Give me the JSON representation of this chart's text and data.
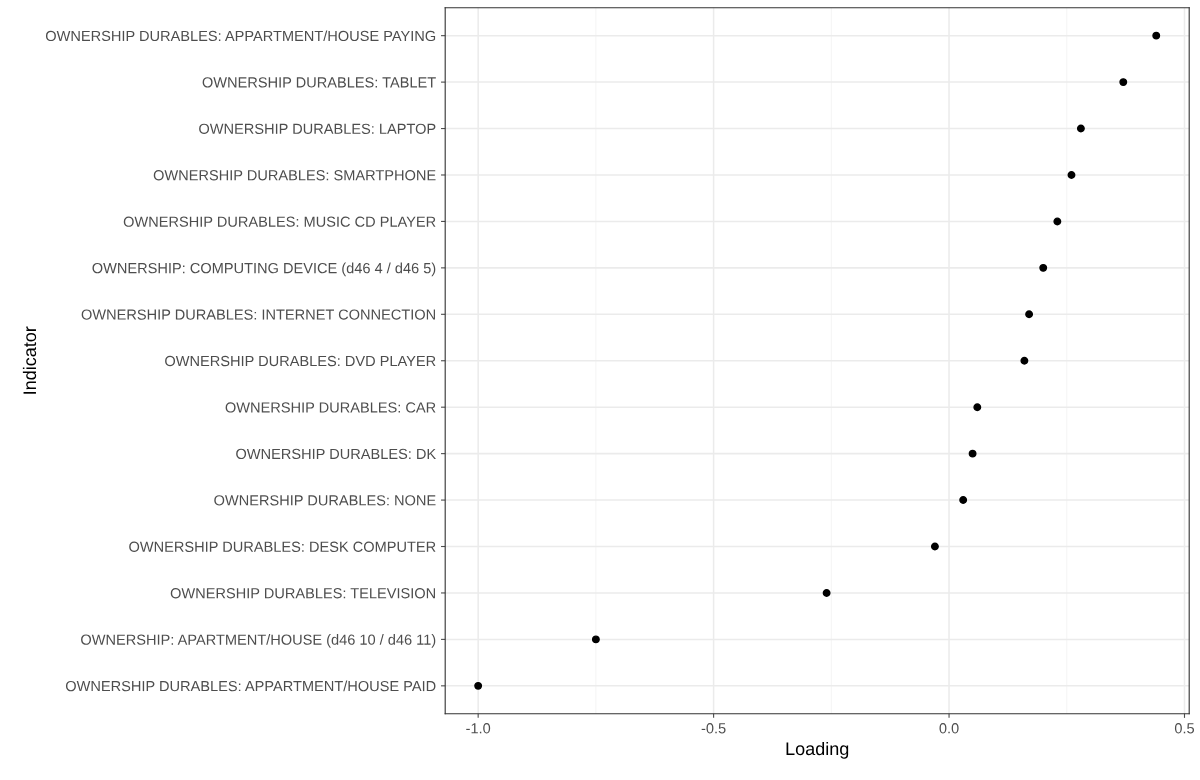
{
  "chart_data": {
    "type": "scatter",
    "orientation": "horizontal",
    "xlabel": "Loading",
    "ylabel": "Indicator",
    "categories": [
      "OWNERSHIP DURABLES: APPARTMENT/HOUSE PAYING",
      "OWNERSHIP DURABLES: TABLET",
      "OWNERSHIP DURABLES: LAPTOP",
      "OWNERSHIP DURABLES: SMARTPHONE",
      "OWNERSHIP DURABLES: MUSIC CD PLAYER",
      "OWNERSHIP: COMPUTING DEVICE (d46 4 / d46 5)",
      "OWNERSHIP DURABLES: INTERNET CONNECTION",
      "OWNERSHIP DURABLES: DVD PLAYER",
      "OWNERSHIP DURABLES: CAR",
      "OWNERSHIP DURABLES: DK",
      "OWNERSHIP DURABLES: NONE",
      "OWNERSHIP DURABLES: DESK COMPUTER",
      "OWNERSHIP DURABLES: TELEVISION",
      "OWNERSHIP: APARTMENT/HOUSE (d46 10 / d46 11)",
      "OWNERSHIP DURABLES: APPARTMENT/HOUSE PAID"
    ],
    "series": [
      {
        "color": "#000000",
        "values": [
          0.44,
          0.37,
          0.28,
          0.26,
          0.23,
          0.2,
          0.17,
          0.16,
          0.06,
          0.05,
          0.03,
          -0.03,
          -0.26,
          -0.75,
          -1.0
        ]
      }
    ],
    "xlim": [
      -1.07,
      0.51
    ],
    "xticks": [
      {
        "value": -1.0,
        "label": "-1.0"
      },
      {
        "value": -0.5,
        "label": "-0.5"
      },
      {
        "value": 0.0,
        "label": "0.0"
      },
      {
        "value": 0.5,
        "label": "0.5"
      }
    ],
    "grid": true,
    "marker": "circle"
  }
}
